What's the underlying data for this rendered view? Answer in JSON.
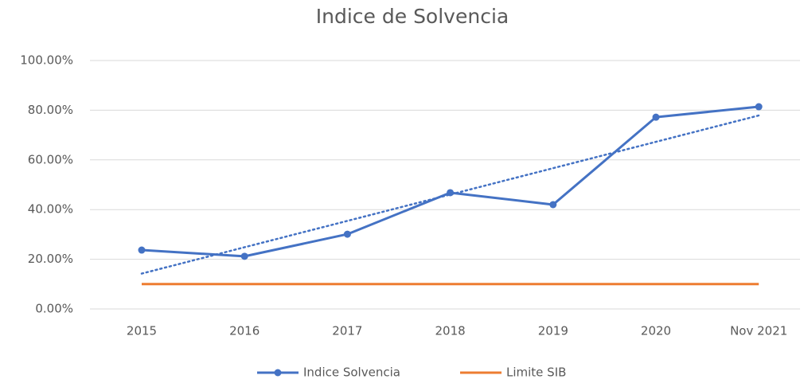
{
  "chart_data": {
    "type": "line",
    "title": "Indice de Solvencia",
    "categories": [
      "2015",
      "2016",
      "2017",
      "2018",
      "2019",
      "2020",
      "Nov 2021"
    ],
    "series": [
      {
        "name": "Indice Solvencia",
        "color": "#4472c4",
        "values": [
          23.7,
          21.2,
          30.1,
          46.8,
          42.0,
          77.2,
          81.4
        ],
        "markers": true,
        "trendline": true
      },
      {
        "name": "Limite SIB",
        "color": "#ed7d31",
        "values": [
          10,
          10,
          10,
          10,
          10,
          10,
          10
        ],
        "markers": false
      }
    ],
    "ylim": [
      0,
      100
    ],
    "yticks": [
      {
        "value": 0,
        "label": "0.00%"
      },
      {
        "value": 20,
        "label": "20.00%"
      },
      {
        "value": 40,
        "label": "40.00%"
      },
      {
        "value": 60,
        "label": "60.00%"
      },
      {
        "value": 80,
        "label": "80.00%"
      },
      {
        "value": 100,
        "label": "100.00%"
      }
    ],
    "grid": true,
    "legend": "bottom"
  }
}
